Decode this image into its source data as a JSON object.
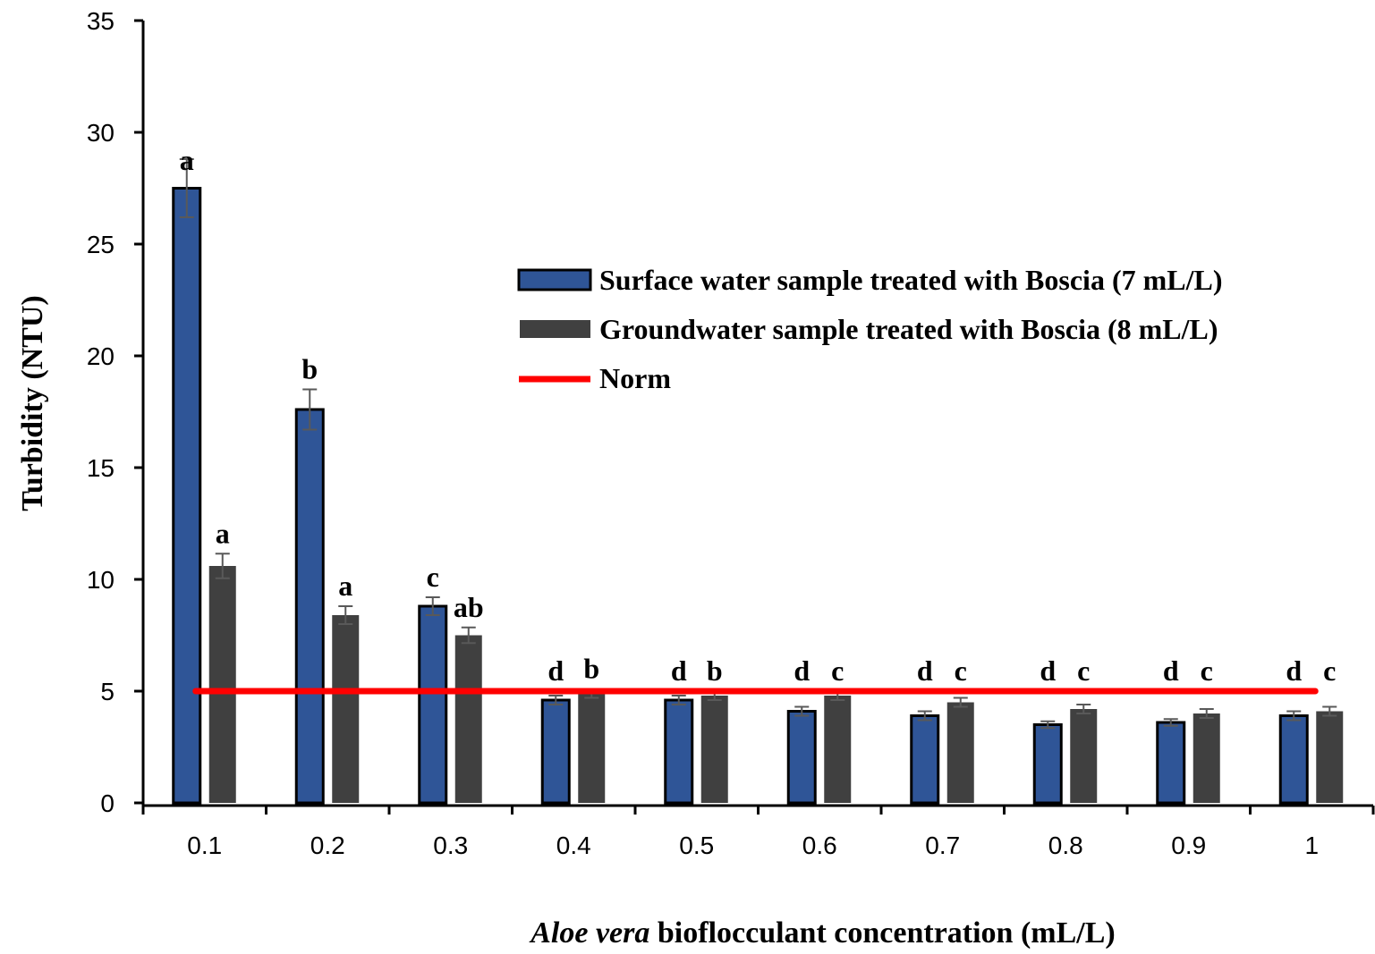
{
  "chart_data": {
    "type": "bar",
    "xlabel_italic": "Aloe vera",
    "xlabel_rest": " bioflocculant concentration (mL/L)",
    "ylabel": "Turbidity (NTU)",
    "ylim": [
      0,
      35
    ],
    "yticks": [
      "0",
      "5",
      "10",
      "15",
      "20",
      "25",
      "30",
      "35"
    ],
    "categories": [
      "0.1",
      "0.2",
      "0.3",
      "0.4",
      "0.5",
      "0.6",
      "0.7",
      "0.8",
      "0.9",
      "1"
    ],
    "series": [
      {
        "name": "Surface water sample treated with Boscia (7 mL/L)",
        "color": "#2f5597",
        "values": [
          27.5,
          17.6,
          8.8,
          4.6,
          4.6,
          4.1,
          3.9,
          3.5,
          3.6,
          3.9
        ],
        "errors": [
          1.3,
          0.9,
          0.4,
          0.2,
          0.2,
          0.2,
          0.2,
          0.15,
          0.15,
          0.2
        ],
        "letters": [
          "a",
          "b",
          "c",
          "d",
          "d",
          "d",
          "d",
          "d",
          "d",
          "d"
        ]
      },
      {
        "name": "Groundwater sample treated with Boscia (8 mL/L)",
        "color": "#404040",
        "values": [
          10.6,
          8.4,
          7.5,
          4.9,
          4.8,
          4.8,
          4.5,
          4.2,
          4.0,
          4.1
        ],
        "errors": [
          0.55,
          0.4,
          0.35,
          0.2,
          0.2,
          0.2,
          0.2,
          0.2,
          0.2,
          0.2
        ],
        "letters": [
          "a",
          "a",
          "ab",
          "b",
          "b",
          "c",
          "c",
          "c",
          "c",
          "c"
        ]
      }
    ],
    "norm": {
      "name": "Norm",
      "value": 5,
      "color": "#ff0000"
    },
    "legend_position": "upper-right",
    "grid": false
  }
}
